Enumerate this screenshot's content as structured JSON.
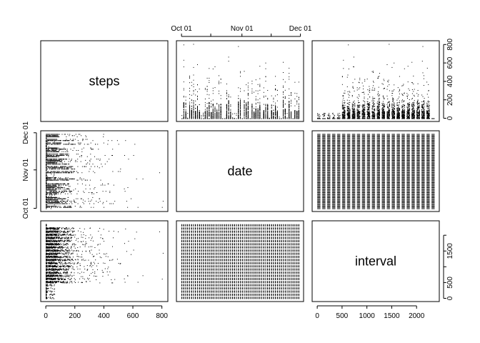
{
  "chart_data": {
    "type": "scatter",
    "kind": "pairs-matrix",
    "variables": [
      "steps",
      "date",
      "interval"
    ],
    "ranges": {
      "steps": [
        0,
        806
      ],
      "date": [
        "2012-10-01",
        "2012-11-30"
      ],
      "interval": [
        0,
        2355
      ]
    },
    "axes": {
      "steps": {
        "ticks": [
          0,
          200,
          400,
          600,
          800
        ],
        "tick_labels": [
          "0",
          "200",
          "400",
          "600",
          "800"
        ]
      },
      "date": {
        "ticks": [
          "2012-10-01",
          "2012-11-01",
          "2012-12-01"
        ],
        "tick_labels": [
          "Oct 01",
          "Nov 01",
          "Dec 01"
        ]
      },
      "interval": {
        "ticks": [
          0,
          500,
          1000,
          1500,
          2000
        ],
        "tick_labels": [
          "0",
          "500",
          "1000",
          "1500",
          "2000"
        ]
      }
    },
    "interval_right_ticks": {
      "ticks": [
        0,
        500,
        1000,
        1500,
        2000
      ],
      "tick_labels": [
        "0",
        "500",
        "",
        "1500",
        ""
      ]
    },
    "grid": false,
    "legend": "none",
    "point_color": "#000000"
  }
}
